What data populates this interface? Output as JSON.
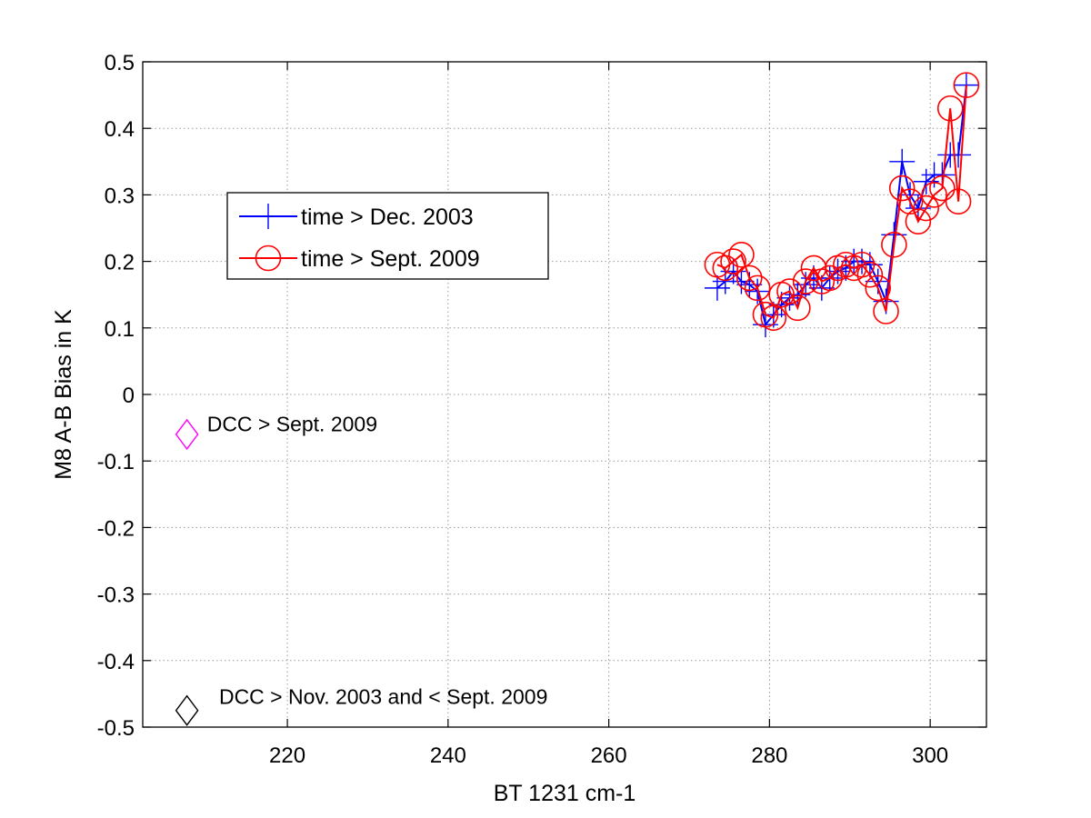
{
  "chart_data": {
    "type": "line",
    "title": "",
    "xlabel": "BT 1231 cm-1",
    "ylabel": "M8 A-B Bias in K",
    "xlim": [
      202,
      307
    ],
    "ylim": [
      -0.5,
      0.5
    ],
    "xticks": [
      220,
      240,
      260,
      280,
      300
    ],
    "yticks": [
      -0.5,
      -0.4,
      -0.3,
      -0.2,
      -0.1,
      0,
      0.1,
      0.2,
      0.3,
      0.4,
      0.5
    ],
    "xtick_labels": [
      "220",
      "240",
      "260",
      "280",
      "300"
    ],
    "ytick_labels": [
      "-0.5",
      "-0.4",
      "-0.3",
      "-0.2",
      "-0.1",
      "0",
      "0.1",
      "0.2",
      "0.3",
      "0.4",
      "0.5"
    ],
    "grid": true,
    "legend_position": "upper-left",
    "series": [
      {
        "name": "time > Dec. 2003",
        "color": "#0000ff",
        "marker": "plus",
        "x": [
          273.5,
          274.5,
          275.5,
          276.5,
          277.5,
          278.5,
          279.5,
          280.5,
          281.5,
          282.5,
          283.5,
          284.5,
          285.5,
          286.5,
          287.5,
          288.5,
          289.5,
          290.5,
          291.5,
          292.5,
          293.5,
          294.5,
          295.5,
          296.5,
          297.5,
          298.5,
          299.5,
          300.5,
          301.5,
          302.5,
          303.5,
          304.5
        ],
        "y": [
          0.16,
          0.17,
          0.185,
          0.17,
          0.165,
          0.155,
          0.105,
          0.12,
          0.135,
          0.145,
          0.15,
          0.165,
          0.175,
          0.16,
          0.175,
          0.185,
          0.19,
          0.2,
          0.2,
          0.195,
          0.17,
          0.14,
          0.24,
          0.35,
          0.3,
          0.28,
          0.32,
          0.33,
          0.33,
          0.36,
          0.36,
          0.465
        ]
      },
      {
        "name": "time > Sept. 2009",
        "color": "#ff0000",
        "marker": "circle",
        "x": [
          273.5,
          274.5,
          275.5,
          276.5,
          277.5,
          278.5,
          279.5,
          280.5,
          281.5,
          282.5,
          283.5,
          284.5,
          285.5,
          286.5,
          287.5,
          288.5,
          289.5,
          290.5,
          291.5,
          292.5,
          293.5,
          294.5,
          295.5,
          296.5,
          297.5,
          298.5,
          299.5,
          300.5,
          301.5,
          302.5,
          303.5,
          304.5
        ],
        "y": [
          0.195,
          0.19,
          0.2,
          0.21,
          0.175,
          0.16,
          0.12,
          0.115,
          0.15,
          0.155,
          0.13,
          0.17,
          0.19,
          0.17,
          0.175,
          0.19,
          0.195,
          0.19,
          0.195,
          0.18,
          0.16,
          0.125,
          0.225,
          0.31,
          0.29,
          0.26,
          0.28,
          0.3,
          0.31,
          0.43,
          0.29,
          0.465
        ]
      },
      {
        "name": "DCC > Sept. 2009",
        "color": "#ff00ff",
        "marker": "diamond",
        "x": [
          207.5
        ],
        "y": [
          -0.06
        ]
      },
      {
        "name": "DCC > Nov. 2003 and < Sept. 2009",
        "color": "#000000",
        "marker": "diamond",
        "x": [
          207.5
        ],
        "y": [
          -0.475
        ]
      }
    ],
    "legend": [
      {
        "label": "time > Dec. 2003",
        "color": "#0000ff",
        "marker": "plus"
      },
      {
        "label": "time > Sept. 2009",
        "color": "#ff0000",
        "marker": "circle"
      }
    ],
    "annotations": [
      {
        "text": "DCC > Sept. 2009",
        "x": 210,
        "y": -0.055
      },
      {
        "text": "DCC > Nov. 2003 and < Sept. 2009",
        "x": 211.5,
        "y": -0.465
      }
    ]
  }
}
